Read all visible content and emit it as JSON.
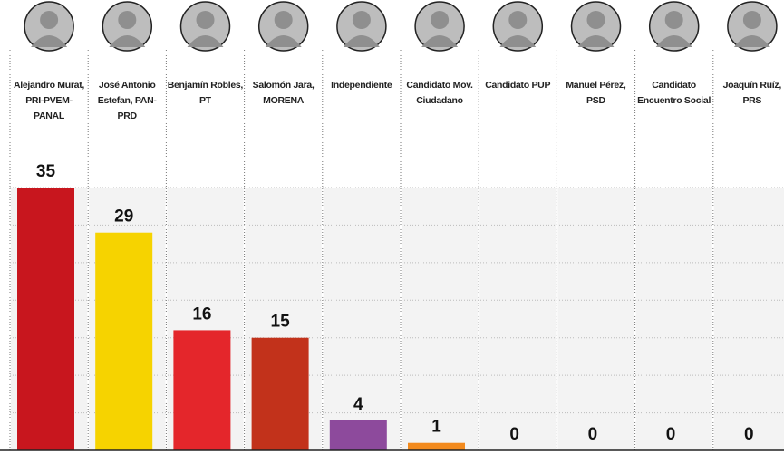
{
  "chart_data": {
    "type": "bar",
    "categories": [
      "Alejandro Murat, PRI-PVEM-PANAL",
      "José Antonio Estefan, PAN-PRD",
      "Benjamín Robles, PT",
      "Salomón Jara, MORENA",
      "Independiente",
      "Candidato Mov. Ciudadano",
      "Candidato PUP",
      "Manuel Pérez, PSD",
      "Candidato Encuentro Social",
      "Joaquín Ruíz, PRS"
    ],
    "values": [
      35,
      29,
      16,
      15,
      4,
      1,
      0,
      0,
      0,
      0
    ],
    "colors": [
      "#c8161e",
      "#f6d300",
      "#e4262b",
      "#c2321b",
      "#8d4a9c",
      "#f28a1d",
      null,
      null,
      null,
      null
    ],
    "ylim": [
      0,
      35
    ],
    "yticks": [
      0,
      5,
      10,
      15,
      20,
      25,
      30,
      35
    ],
    "grid": true
  }
}
